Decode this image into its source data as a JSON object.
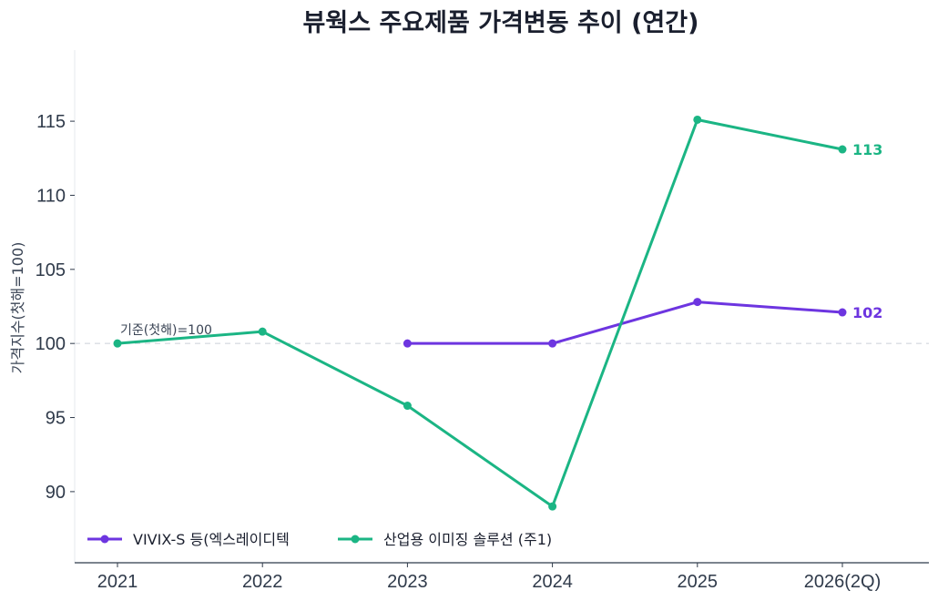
{
  "chart_data": {
    "type": "line",
    "title": "뷰웍스 주요제품 가격변동 추이 (연간)",
    "xlabel": "",
    "ylabel": "가격지수(첫해=100)",
    "categories": [
      "2021",
      "2022",
      "2023",
      "2024",
      "2025",
      "2026(2Q)"
    ],
    "ylim": [
      85.2,
      119.8
    ],
    "yticks": [
      90,
      95,
      100,
      105,
      110,
      115
    ],
    "grid": false,
    "legend_placement": "bottom-left",
    "baseline": {
      "value": 100,
      "label": "기준(첫해)=100"
    },
    "series": [
      {
        "name": "VIVIX-S 등(엑스레이디텍",
        "color": "#6d35e0",
        "values": [
          null,
          null,
          100,
          100,
          102.8,
          102.1
        ],
        "end_label": "102"
      },
      {
        "name": "산업용 이미징 솔루션 (주1)",
        "color": "#1bb584",
        "values": [
          100,
          100.8,
          95.8,
          89.0,
          115.1,
          113.1
        ],
        "end_label": "113"
      }
    ]
  }
}
